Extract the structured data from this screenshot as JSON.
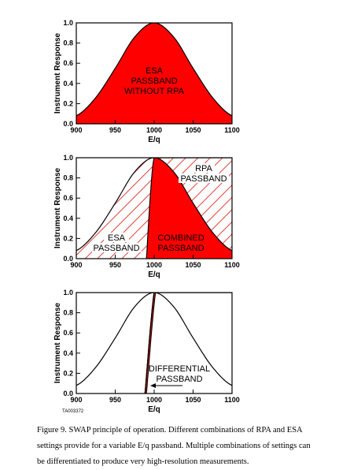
{
  "chart_data": [
    {
      "type": "area",
      "xlabel": "E/q",
      "ylabel": "Instrument Response",
      "xlim": [
        900,
        1100
      ],
      "ylim": [
        0,
        1.0
      ],
      "xticks": [
        "900",
        "950",
        "1000",
        "1050",
        "1100"
      ],
      "yticks": [
        "0.0",
        "0.2",
        "0.4",
        "0.6",
        "0.8",
        "1.0"
      ],
      "grid": false,
      "series": [
        {
          "x": [
            900,
            925,
            950,
            975,
            1000,
            1025,
            1050,
            1075,
            1100
          ],
          "values": [
            0.08,
            0.26,
            0.55,
            0.86,
            1.0,
            0.86,
            0.55,
            0.26,
            0.08
          ]
        }
      ],
      "annotations": [
        "ESA",
        "PASSBAND",
        "WITHOUT RPA"
      ]
    },
    {
      "type": "area",
      "xlabel": "E/q",
      "ylabel": "Instrument Response",
      "xlim": [
        900,
        1100
      ],
      "ylim": [
        0,
        1.0
      ],
      "xticks": [
        "900",
        "950",
        "1000",
        "1050",
        "1100"
      ],
      "yticks": [
        "0.0",
        "0.2",
        "0.4",
        "0.6",
        "0.8",
        "1.0"
      ],
      "grid": false,
      "series": [
        {
          "x": [
            900,
            925,
            950,
            975,
            1000,
            1025,
            1050,
            1075,
            1100
          ],
          "values": [
            0.08,
            0.26,
            0.55,
            0.86,
            1.0,
            0.86,
            0.55,
            0.26,
            0.08
          ]
        },
        {
          "x": [
            990,
            992,
            994,
            996,
            998,
            1000,
            1100
          ],
          "values": [
            0.0,
            0.25,
            0.5,
            0.72,
            0.9,
            1.0,
            1.0
          ]
        }
      ],
      "annotations": [
        "ESA",
        "PASSBAND",
        "RPA",
        "PASSBAND",
        "COMBINED",
        "PASSBAND"
      ]
    },
    {
      "type": "line",
      "xlabel": "E/q",
      "ylabel": "Instrument Response",
      "xlim": [
        900,
        1100
      ],
      "ylim": [
        0,
        1.0
      ],
      "xticks": [
        "900",
        "950",
        "1000",
        "1050",
        "1100"
      ],
      "yticks": [
        "0.0",
        "0.2",
        "0.4",
        "0.6",
        "0.8",
        "1.0"
      ],
      "grid": false,
      "series": [
        {
          "x": [
            900,
            925,
            950,
            975,
            1000,
            1025,
            1050,
            1075,
            1100
          ],
          "values": [
            0.08,
            0.26,
            0.55,
            0.86,
            1.0,
            0.86,
            0.55,
            0.26,
            0.08
          ]
        },
        {
          "x": [
            988,
            990,
            992,
            994,
            996,
            998,
            1000,
            1100
          ],
          "values": [
            0.0,
            0.17,
            0.36,
            0.55,
            0.72,
            0.88,
            1.0,
            1.0
          ]
        }
      ],
      "annotations": [
        "DIFFERENTIAL",
        "PASSBAND"
      ],
      "tag": "TA003372"
    }
  ],
  "colors": {
    "fill": "#ff0000",
    "line": "#000000",
    "hatch": "#e8403a"
  },
  "caption": "Figure 9. SWAP principle of operation. Different combinations of RPA and ESA settings provide for a variable  E/q passband. Multiple combinations of settings can be differentiated to produce very high-resolution measurements."
}
